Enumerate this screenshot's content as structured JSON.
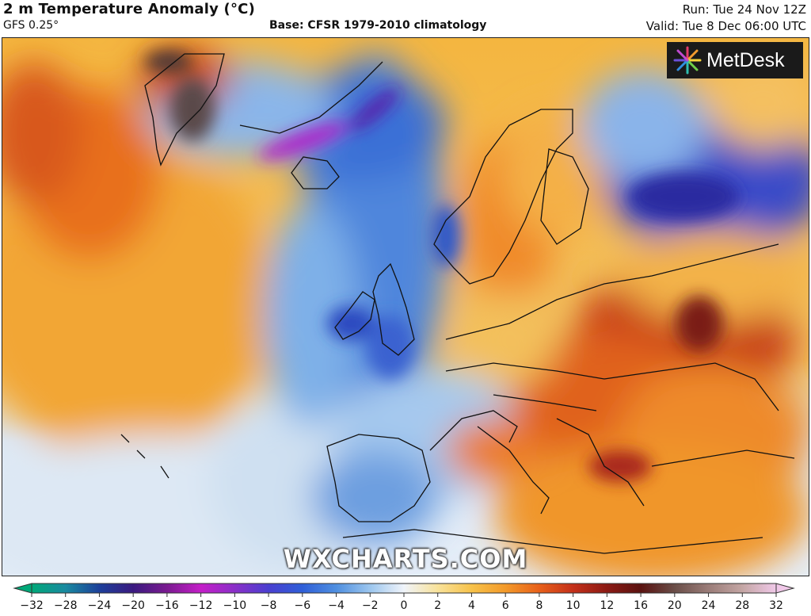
{
  "header": {
    "title": "2 m Temperature Anomaly (°C)",
    "model": "GFS 0.25°",
    "base": "Base: CFSR 1979-2010 climatology",
    "run": "Run: Tue 24 Nov 12Z",
    "valid": "Valid: Tue 8 Dec 06:00 UTC"
  },
  "logo": {
    "text": "MetDesk"
  },
  "watermark": "WXCHARTS.COM",
  "colorbar": {
    "ticks": [
      "−32",
      "−28",
      "−24",
      "−20",
      "−16",
      "−12",
      "−10",
      "−8",
      "−6",
      "−4",
      "−2",
      "0",
      "2",
      "4",
      "6",
      "8",
      "10",
      "12",
      "16",
      "20",
      "24",
      "28",
      "32"
    ],
    "colors": [
      "#00a878",
      "#1a8aa0",
      "#1c3f9a",
      "#3a1a80",
      "#7a1a90",
      "#c41ec8",
      "#8a2fc8",
      "#4a3fd0",
      "#2f5fd8",
      "#4f8fe0",
      "#9cc6ee",
      "#f0f4fa",
      "#f8e29a",
      "#f7c24a",
      "#f39a2a",
      "#e8601a",
      "#c4301a",
      "#8c1a14",
      "#5a1210",
      "#6a4e48",
      "#9a7c78",
      "#c4a6a4",
      "#f0c8e8"
    ]
  },
  "legend_colors": {
    "cold_strong": "#5a1aa8",
    "cold": "#2f5fd8",
    "cool": "#9cc6ee",
    "neutral": "#eef3fa",
    "warm": "#f7c24a",
    "hot": "#e8601a",
    "very_hot": "#8c1a14"
  }
}
